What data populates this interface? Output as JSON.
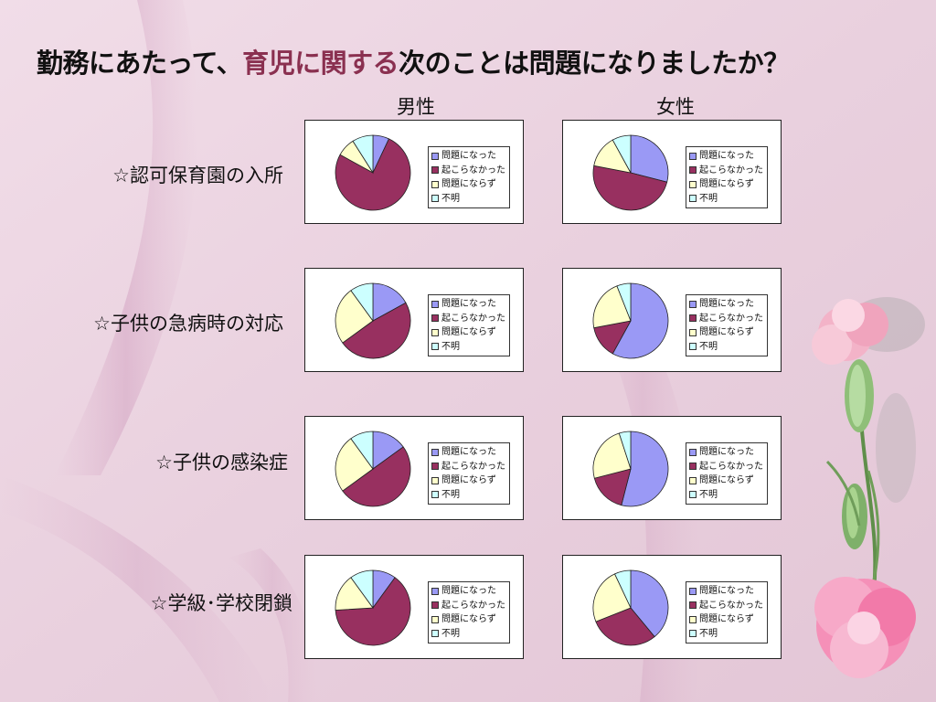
{
  "title": {
    "prefix": "勤務にあたって、",
    "highlight": "育児に関する",
    "suffix": "次のことは問題になりましたか？"
  },
  "columns": [
    "男性",
    "女性"
  ],
  "rows": [
    "☆認可保育園の入所",
    "☆子供の急病時の対応",
    "☆子供の感染症",
    "☆学級･学校閉鎖"
  ],
  "legend_labels": [
    "問題になった",
    "起こらなかった",
    "問題にならず",
    "不明"
  ],
  "colors": {
    "slice": [
      "#9a99f5",
      "#983060",
      "#ffffcc",
      "#ccffff"
    ],
    "highlight": "#8a3050"
  },
  "chart_data": [
    {
      "type": "pie",
      "row": "☆認可保育園の入所",
      "column": "男性",
      "labels": [
        "問題になった",
        "起こらなかった",
        "問題にならず",
        "不明"
      ],
      "values": [
        7,
        76,
        8,
        9
      ]
    },
    {
      "type": "pie",
      "row": "☆認可保育園の入所",
      "column": "女性",
      "labels": [
        "問題になった",
        "起こらなかった",
        "問題にならず",
        "不明"
      ],
      "values": [
        29,
        49,
        14,
        8
      ]
    },
    {
      "type": "pie",
      "row": "☆子供の急病時の対応",
      "column": "男性",
      "labels": [
        "問題になった",
        "起こらなかった",
        "問題にならず",
        "不明"
      ],
      "values": [
        17,
        48,
        25,
        10
      ]
    },
    {
      "type": "pie",
      "row": "☆子供の急病時の対応",
      "column": "女性",
      "labels": [
        "問題になった",
        "起こらなかった",
        "問題にならず",
        "不明"
      ],
      "values": [
        58,
        14,
        22,
        6
      ]
    },
    {
      "type": "pie",
      "row": "☆子供の感染症",
      "column": "男性",
      "labels": [
        "問題になった",
        "起こらなかった",
        "問題にならず",
        "不明"
      ],
      "values": [
        15,
        50,
        25,
        10
      ]
    },
    {
      "type": "pie",
      "row": "☆子供の感染症",
      "column": "女性",
      "labels": [
        "問題になった",
        "起こらなかった",
        "問題にならず",
        "不明"
      ],
      "values": [
        54,
        17,
        24,
        5
      ]
    },
    {
      "type": "pie",
      "row": "☆学級･学校閉鎖",
      "column": "男性",
      "labels": [
        "問題になった",
        "起こらなかった",
        "問題にならず",
        "不明"
      ],
      "values": [
        10,
        64,
        16,
        10
      ]
    },
    {
      "type": "pie",
      "row": "☆学級･学校閉鎖",
      "column": "女性",
      "labels": [
        "問題になった",
        "起こらなかった",
        "問題にならず",
        "不明"
      ],
      "values": [
        39,
        30,
        24,
        7
      ]
    }
  ]
}
